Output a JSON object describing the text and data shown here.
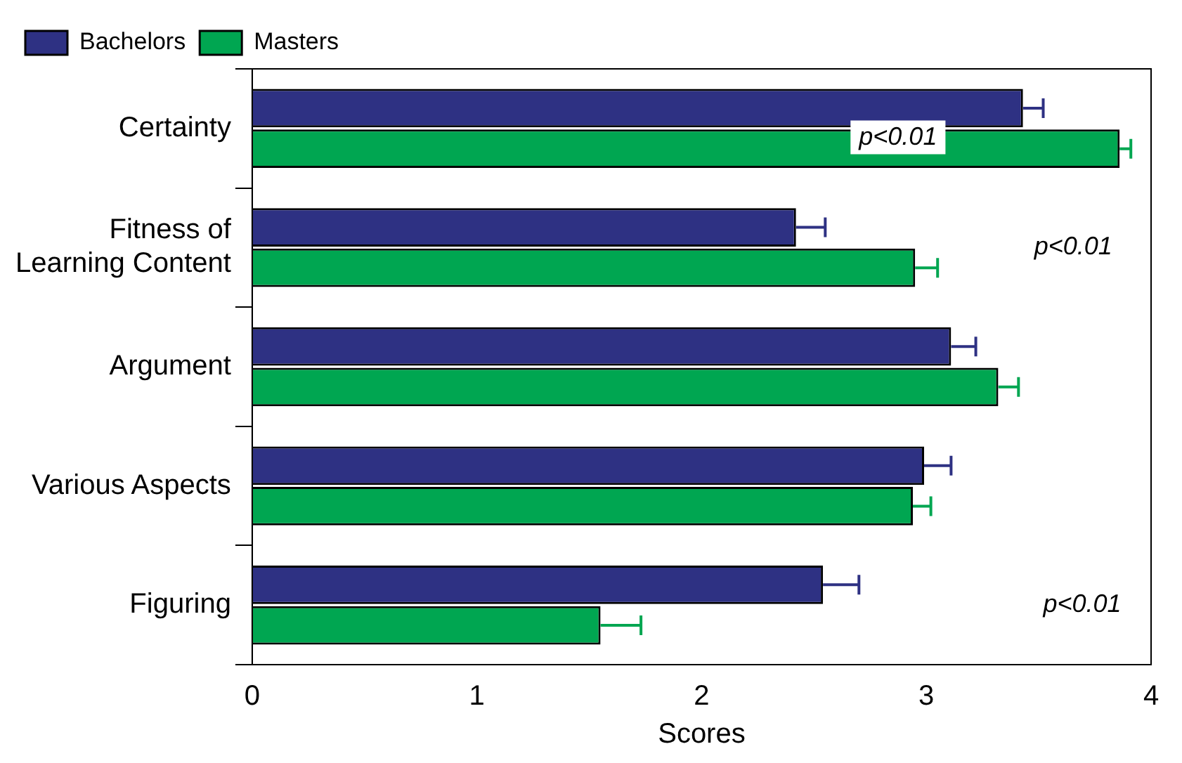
{
  "chart_data": {
    "type": "bar",
    "orientation": "horizontal",
    "xlabel": "Scores",
    "categories": [
      "Certainty",
      "Fitness of Learning Content",
      "Argument",
      "Various Aspects",
      "Figuring"
    ],
    "series": [
      {
        "name": "Bachelors",
        "color": "#2e3183",
        "values": [
          3.43,
          2.42,
          3.11,
          2.99,
          2.54
        ],
        "errors": [
          [
            3.43,
            3.52
          ],
          [
            2.42,
            2.55
          ],
          [
            3.11,
            3.22
          ],
          [
            2.99,
            3.11
          ],
          [
            2.54,
            2.7
          ]
        ]
      },
      {
        "name": "Masters",
        "color": "#00a651",
        "values": [
          3.86,
          2.95,
          3.32,
          2.94,
          1.55
        ],
        "errors": [
          [
            3.86,
            3.91
          ],
          [
            2.95,
            3.05
          ],
          [
            3.32,
            3.41
          ],
          [
            2.94,
            3.02
          ],
          [
            1.55,
            1.73
          ]
        ]
      }
    ],
    "xlim": [
      0,
      4
    ],
    "xticks": [
      0,
      1,
      2,
      3,
      4
    ],
    "grid": false,
    "legend": "top left",
    "annotations": [
      "p<0.01",
      "p<0.01",
      "p<0.01"
    ]
  }
}
